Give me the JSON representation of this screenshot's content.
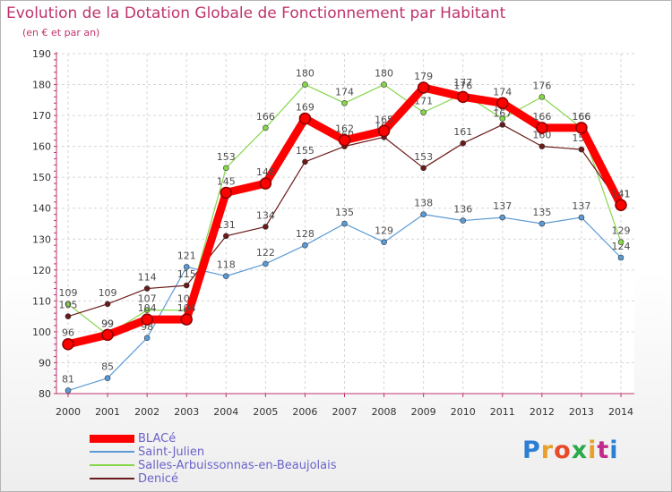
{
  "title": "Evolution de la Dotation Globale de Fonctionnement par Habitant",
  "subtitle": "(en € et par an)",
  "logo": {
    "text": "Proxiti",
    "colors": [
      "#2a7fd4",
      "#e8a02a",
      "#e84a2a",
      "#2aa84a",
      "#e8a02a",
      "#c02a8a",
      "#2a7fd4"
    ]
  },
  "chart_data": {
    "type": "line",
    "title": "Evolution de la Dotation Globale de Fonctionnement par Habitant",
    "subtitle": "(en € et par an)",
    "xlabel": "",
    "ylabel": "",
    "ylim": [
      80,
      190
    ],
    "yticks": [
      80,
      90,
      100,
      110,
      120,
      130,
      140,
      150,
      160,
      170,
      180,
      190
    ],
    "grid": true,
    "legend": "bottom-left",
    "x": [
      "2000",
      "2001",
      "2002",
      "2003",
      "2004",
      "2005",
      "2006",
      "2007",
      "2008",
      "2009",
      "2010",
      "2011",
      "2012",
      "2013",
      "2014"
    ],
    "series": [
      {
        "name": "Saint-Julien",
        "color": "#5b9bd5",
        "values": [
          81,
          85,
          98,
          121,
          118,
          122,
          128,
          135,
          129,
          138,
          136,
          137,
          135,
          137,
          124
        ]
      },
      {
        "name": "Salles-Arbuissonnas-en-Beaujolais",
        "color": "#86d64a",
        "values": [
          109,
          99,
          107,
          107,
          153,
          166,
          180,
          174,
          180,
          171,
          177,
          169,
          176,
          166,
          129
        ]
      },
      {
        "name": "Denicé",
        "color": "#6b1a1a",
        "values": [
          105,
          109,
          114,
          115,
          131,
          134,
          155,
          160,
          163,
          153,
          161,
          167,
          160,
          159,
          141
        ]
      },
      {
        "name": "BLACé",
        "color": "#ff0000",
        "values": [
          96,
          99,
          104,
          104,
          145,
          148,
          169,
          162,
          165,
          179,
          176,
          174,
          166,
          166,
          141
        ]
      }
    ]
  }
}
